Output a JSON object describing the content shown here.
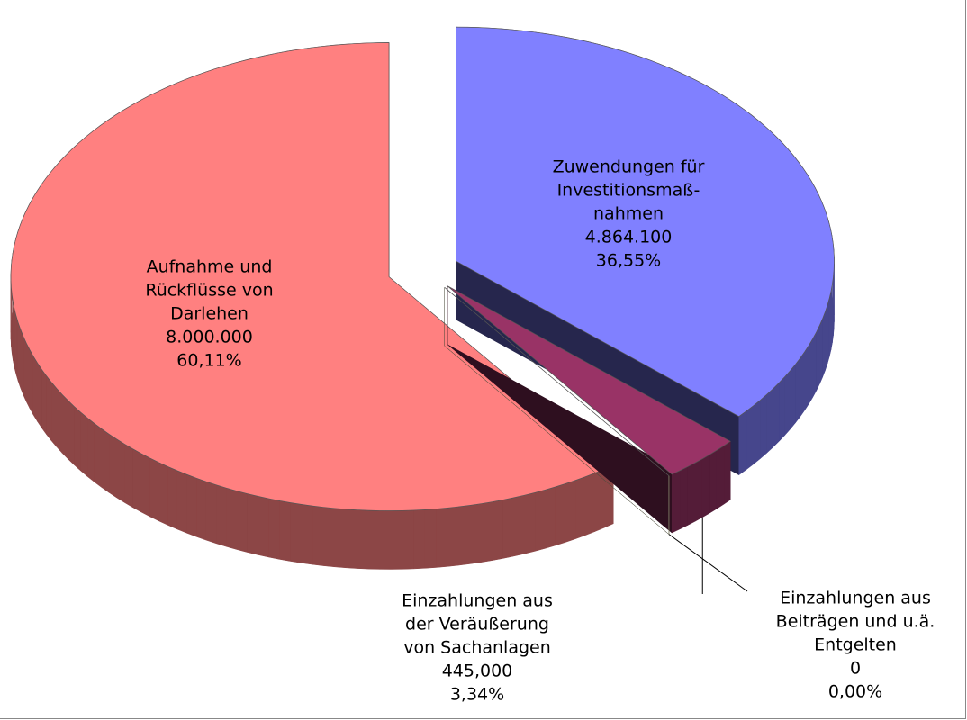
{
  "chart_data": {
    "type": "pie3d",
    "categories": [
      [
        "Zuwendungen für",
        "Investitionsmaß-",
        "nahmen"
      ],
      [
        "Einzahlungen aus",
        "der Veräußerung",
        "von Sachanlagen"
      ],
      [
        "Einzahlungen aus",
        "Beiträgen und u.ä.",
        "Entgelten"
      ],
      [
        "Aufnahme und",
        "Rückflüsse von",
        "Darlehen"
      ]
    ],
    "values": [
      4864100,
      445000,
      0,
      8000000
    ],
    "value_labels": [
      "4.864.100",
      "445,000",
      "0",
      "8.000.000"
    ],
    "percents": [
      36.55,
      3.34,
      0,
      60.11
    ],
    "percent_labels": [
      "36,55%",
      "3,34%",
      "0,00%",
      "60,11%"
    ],
    "colors": [
      "#8080ff",
      "#993366",
      "#ffffcc",
      "#ff8080"
    ]
  }
}
